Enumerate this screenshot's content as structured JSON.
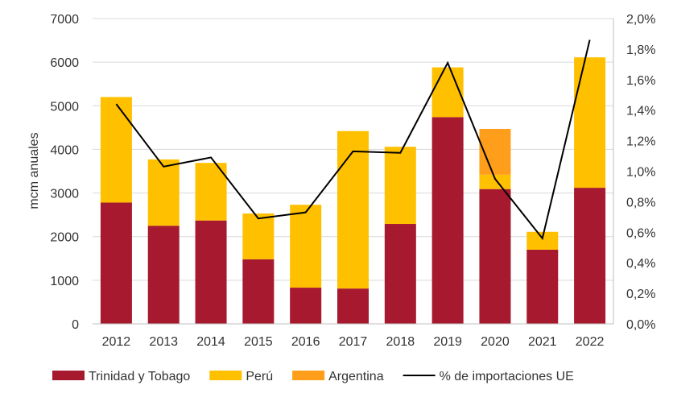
{
  "chart_data": {
    "type": "bar",
    "stacked": true,
    "categories": [
      "2012",
      "2013",
      "2014",
      "2015",
      "2016",
      "2017",
      "2018",
      "2019",
      "2020",
      "2021",
      "2022"
    ],
    "series": [
      {
        "name": "Trinidad y Tobago",
        "color": "#A6192E",
        "values": [
          2780,
          2250,
          2370,
          1480,
          830,
          810,
          2290,
          4740,
          3090,
          1700,
          3120
        ]
      },
      {
        "name": "Perú",
        "color": "#FFC000",
        "values": [
          2420,
          1520,
          1320,
          1050,
          1900,
          3610,
          1770,
          1140,
          330,
          410,
          2990
        ]
      },
      {
        "name": "Argentina",
        "color": "#FF9E1B",
        "values": [
          0,
          0,
          0,
          0,
          0,
          0,
          0,
          0,
          1050,
          0,
          0
        ]
      }
    ],
    "line_series": {
      "name": "% de importaciones UE",
      "color": "#000000",
      "axis": "right",
      "values": [
        1.44,
        1.03,
        1.09,
        0.69,
        0.73,
        1.13,
        1.12,
        1.71,
        0.95,
        0.56,
        1.86
      ]
    },
    "title": "",
    "ylabel": "mcm anuales",
    "xlabel": "",
    "ylim": [
      0,
      7000
    ],
    "yticks": [
      "0",
      "1000",
      "2000",
      "3000",
      "4000",
      "5000",
      "6000",
      "7000"
    ],
    "y2lim": [
      0,
      2.0
    ],
    "y2ticks": [
      "0,0%",
      "0,2%",
      "0,4%",
      "0,6%",
      "0,8%",
      "1,0%",
      "1,2%",
      "1,4%",
      "1,6%",
      "1,8%",
      "2,0%"
    ],
    "grid": true,
    "legend_position": "bottom"
  }
}
